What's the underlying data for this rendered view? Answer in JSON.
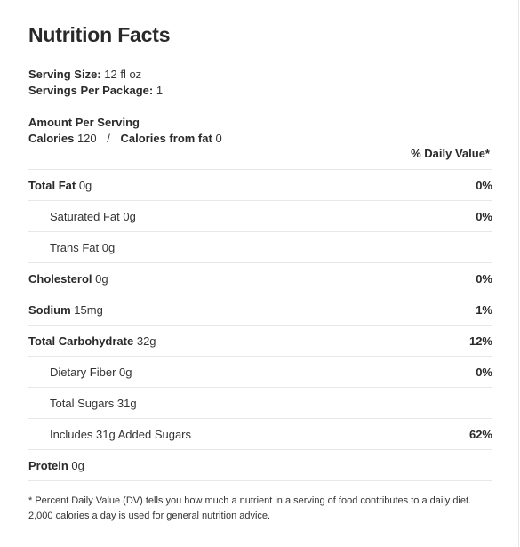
{
  "title": "Nutrition Facts",
  "serving": {
    "size_label": "Serving Size:",
    "size_value": "12 fl oz",
    "per_package_label": "Servings Per Package:",
    "per_package_value": "1"
  },
  "amount": {
    "heading": "Amount Per Serving",
    "calories_label": "Calories",
    "calories_value": "120",
    "separator": "/",
    "fat_calories_label": "Calories from fat",
    "fat_calories_value": "0"
  },
  "daily_value_header": "% Daily Value*",
  "nutrients": [
    {
      "label": "Total Fat",
      "amount": "0g",
      "pct": "0%"
    },
    {
      "label": "Saturated Fat",
      "amount": "0g",
      "pct": "0%"
    },
    {
      "label": "Trans Fat",
      "amount": "0g",
      "pct": ""
    },
    {
      "label": "Cholesterol",
      "amount": "0g",
      "pct": "0%"
    },
    {
      "label": "Sodium",
      "amount": "15mg",
      "pct": "1%"
    },
    {
      "label": "Total Carbohydrate",
      "amount": "32g",
      "pct": "12%"
    },
    {
      "label": "Dietary Fiber",
      "amount": "0g",
      "pct": "0%"
    },
    {
      "label": "Total Sugars",
      "amount": "31g",
      "pct": ""
    },
    {
      "label": "Includes 31g Added Sugars",
      "amount": "",
      "pct": "62%"
    },
    {
      "label": "Protein",
      "amount": "0g",
      "pct": ""
    }
  ],
  "footnote": {
    "line1": "* Percent Daily Value (DV) tells you how much a nutrient in a serving of food contributes to a daily diet.",
    "line2": "2,000 calories a day is used for general nutrition advice."
  }
}
